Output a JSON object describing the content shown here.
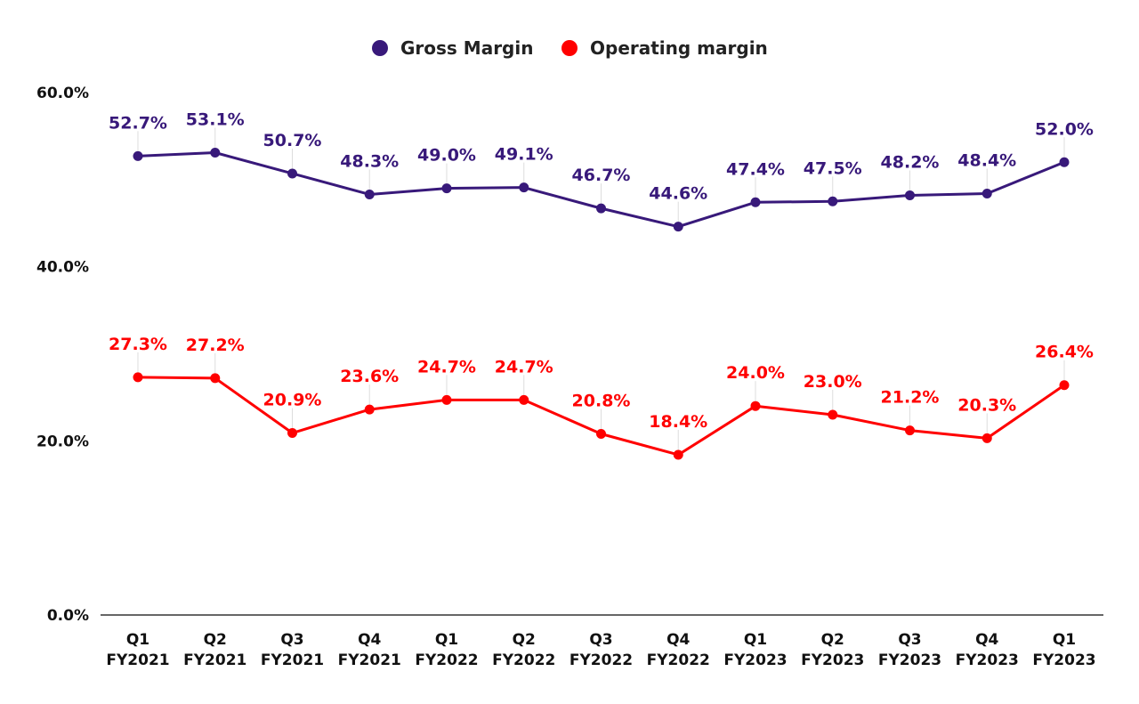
{
  "chart_data": {
    "type": "line",
    "categories": [
      [
        "Q1",
        "FY2021"
      ],
      [
        "Q2",
        "FY2021"
      ],
      [
        "Q3",
        "FY2021"
      ],
      [
        "Q4",
        "FY2021"
      ],
      [
        "Q1",
        "FY2022"
      ],
      [
        "Q2",
        "FY2022"
      ],
      [
        "Q3",
        "FY2022"
      ],
      [
        "Q4",
        "FY2022"
      ],
      [
        "Q1",
        "FY2023"
      ],
      [
        "Q2",
        "FY2023"
      ],
      [
        "Q3",
        "FY2023"
      ],
      [
        "Q4",
        "FY2023"
      ],
      [
        "Q1",
        "FY2023"
      ]
    ],
    "series": [
      {
        "name": "Gross Margin",
        "color": "#38197a",
        "values": [
          52.7,
          53.1,
          50.7,
          48.3,
          49.0,
          49.1,
          46.7,
          44.6,
          47.4,
          47.5,
          48.2,
          48.4,
          52.0
        ]
      },
      {
        "name": "Operating margin",
        "color": "#ff0000",
        "values": [
          27.3,
          27.2,
          20.9,
          23.6,
          24.7,
          24.7,
          20.8,
          18.4,
          24.0,
          23.0,
          21.2,
          20.3,
          26.4
        ]
      }
    ],
    "ylim": [
      0,
      60
    ],
    "yticks": [
      0,
      20,
      40,
      60
    ],
    "ytick_labels": [
      "0.0%",
      "20.0%",
      "40.0%",
      "60.0%"
    ],
    "grid": false,
    "legend_position": "top",
    "data_labels": true
  }
}
